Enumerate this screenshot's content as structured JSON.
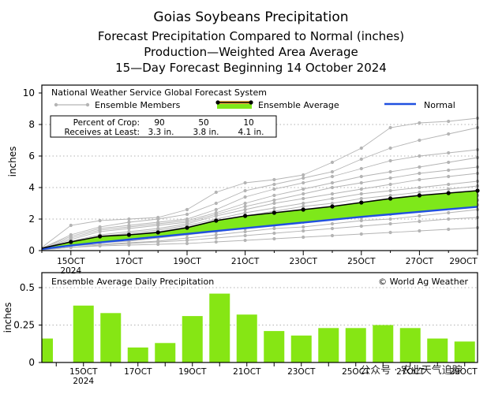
{
  "titles": {
    "line1": "Goias Soybeans Precipitation",
    "line2": "Forecast Precipitation Compared to Normal (inches)",
    "line3": "Production—Weighted Area Average",
    "line4": "15—Day Forecast Beginning 14 October 2024"
  },
  "top_chart": {
    "legend": {
      "source": "National Weather Service Global Forecast System",
      "members": "Ensemble Members",
      "average": "Ensemble Average",
      "normal": "Normal"
    },
    "crop_table": {
      "row1_label": "Percent of Crop:",
      "row2_label": "Receives at Least:",
      "percents": [
        "90",
        "50",
        "10"
      ],
      "amounts": [
        "3.3 in.",
        "3.8 in.",
        "4.1 in."
      ]
    },
    "ylabel": "inches",
    "yticks": [
      "0",
      "2",
      "4",
      "6",
      "8",
      "10"
    ],
    "xticks": [
      {
        "label": "15OCT",
        "sub": "2024"
      },
      {
        "label": "17OCT",
        "sub": ""
      },
      {
        "label": "19OCT",
        "sub": ""
      },
      {
        "label": "21OCT",
        "sub": ""
      },
      {
        "label": "23OCT",
        "sub": ""
      },
      {
        "label": "25OCT",
        "sub": ""
      },
      {
        "label": "27OCT",
        "sub": ""
      },
      {
        "label": "29OCT",
        "sub": ""
      }
    ]
  },
  "bottom_chart": {
    "title": "Ensemble Average Daily Precipitation",
    "credit": "© World Ag Weather",
    "ylabel": "inches",
    "yticks": [
      "0",
      "0.25",
      "0.5"
    ],
    "xticks": [
      {
        "label": "15OCT",
        "sub": "2024"
      },
      {
        "label": "17OCT",
        "sub": ""
      },
      {
        "label": "19OCT",
        "sub": ""
      },
      {
        "label": "21OCT",
        "sub": ""
      },
      {
        "label": "23OCT",
        "sub": ""
      },
      {
        "label": "25OCT",
        "sub": ""
      },
      {
        "label": "27OCT",
        "sub": ""
      },
      {
        "label": "29OCT",
        "sub": ""
      }
    ]
  },
  "watermark": "公众号 · 农业天气追踪",
  "colors": {
    "fill_green": "#7ee81a",
    "bar_green": "#86e614",
    "normal_blue": "#2050e0",
    "member_grey": "#b4b4b4",
    "avg_band_orange": "#f5b042"
  },
  "chart_data": [
    {
      "type": "line",
      "title": "Forecast Precipitation Compared to Normal (inches)",
      "xlabel": "",
      "ylabel": "inches",
      "xlim": [
        14.0,
        29.0
      ],
      "ylim": [
        0,
        10.5
      ],
      "x": [
        14,
        15,
        16,
        17,
        18,
        19,
        20,
        21,
        22,
        23,
        24,
        25,
        26,
        27,
        28,
        29
      ],
      "series": [
        {
          "name": "Ensemble Average",
          "values": [
            0.15,
            0.55,
            0.9,
            1.0,
            1.15,
            1.45,
            1.9,
            2.2,
            2.4,
            2.6,
            2.8,
            3.05,
            3.3,
            3.5,
            3.65,
            3.8
          ]
        },
        {
          "name": "Normal",
          "values": [
            0.1,
            0.32,
            0.52,
            0.7,
            0.88,
            1.06,
            1.24,
            1.42,
            1.6,
            1.78,
            1.96,
            2.14,
            2.3,
            2.46,
            2.62,
            2.78
          ]
        },
        {
          "name": "Ensemble Member 1",
          "values": [
            0.2,
            1.6,
            1.9,
            2.0,
            2.1,
            2.6,
            3.7,
            4.3,
            4.5,
            4.8,
            5.6,
            6.5,
            7.8,
            8.1,
            8.2,
            8.4
          ]
        },
        {
          "name": "Ensemble Member 2",
          "values": [
            0.15,
            1.0,
            1.5,
            1.8,
            2.0,
            2.3,
            3.0,
            3.8,
            4.2,
            4.6,
            5.0,
            5.8,
            6.5,
            7.0,
            7.4,
            7.8
          ]
        },
        {
          "name": "Ensemble Member 3",
          "values": [
            0.15,
            0.9,
            1.4,
            1.6,
            1.8,
            2.0,
            2.6,
            3.4,
            3.9,
            4.3,
            4.7,
            5.2,
            5.7,
            6.0,
            6.2,
            6.4
          ]
        },
        {
          "name": "Ensemble Member 4",
          "values": [
            0.1,
            0.8,
            1.3,
            1.5,
            1.7,
            1.9,
            2.4,
            3.0,
            3.5,
            3.9,
            4.3,
            4.7,
            5.0,
            5.3,
            5.6,
            5.9
          ]
        },
        {
          "name": "Ensemble Member 5",
          "values": [
            0.1,
            0.7,
            1.2,
            1.4,
            1.6,
            1.8,
            2.3,
            2.8,
            3.2,
            3.6,
            4.0,
            4.3,
            4.6,
            4.9,
            5.1,
            5.3
          ]
        },
        {
          "name": "Ensemble Member 6",
          "values": [
            0.1,
            0.6,
            1.0,
            1.2,
            1.4,
            1.7,
            2.2,
            2.6,
            3.0,
            3.3,
            3.6,
            3.9,
            4.2,
            4.5,
            4.7,
            4.9
          ]
        },
        {
          "name": "Ensemble Member 7",
          "values": [
            0.1,
            0.5,
            0.9,
            1.1,
            1.3,
            1.6,
            2.0,
            2.4,
            2.7,
            3.0,
            3.3,
            3.6,
            3.8,
            4.0,
            4.2,
            4.4
          ]
        },
        {
          "name": "Ensemble Member 8",
          "values": [
            0.1,
            0.5,
            0.8,
            1.0,
            1.2,
            1.5,
            1.9,
            2.2,
            2.5,
            2.8,
            3.0,
            3.3,
            3.5,
            3.7,
            3.9,
            4.1
          ]
        },
        {
          "name": "Ensemble Member 9",
          "values": [
            0.1,
            0.4,
            0.7,
            0.9,
            1.1,
            1.3,
            1.7,
            2.0,
            2.3,
            2.5,
            2.8,
            3.0,
            3.2,
            3.4,
            3.6,
            3.8
          ]
        },
        {
          "name": "Ensemble Member 10",
          "values": [
            0.1,
            0.4,
            0.6,
            0.8,
            1.0,
            1.2,
            1.5,
            1.8,
            2.0,
            2.2,
            2.5,
            2.7,
            2.9,
            3.1,
            3.3,
            3.5
          ]
        },
        {
          "name": "Ensemble Member 11",
          "values": [
            0.1,
            0.3,
            0.6,
            0.7,
            0.9,
            1.1,
            1.4,
            1.6,
            1.8,
            2.0,
            2.2,
            2.4,
            2.6,
            2.8,
            3.0,
            3.2
          ]
        },
        {
          "name": "Ensemble Member 12",
          "values": [
            0.05,
            0.3,
            0.5,
            0.6,
            0.8,
            1.0,
            1.2,
            1.4,
            1.6,
            1.8,
            2.0,
            2.1,
            2.3,
            2.5,
            2.7,
            2.9
          ]
        },
        {
          "name": "Ensemble Member 13",
          "values": [
            0.05,
            0.3,
            0.4,
            0.5,
            0.6,
            0.8,
            1.0,
            1.2,
            1.4,
            1.5,
            1.7,
            1.9,
            2.0,
            2.2,
            2.4,
            2.6
          ]
        },
        {
          "name": "Ensemble Member 14",
          "values": [
            0.05,
            0.2,
            0.35,
            0.45,
            0.55,
            0.65,
            0.8,
            0.95,
            1.1,
            1.25,
            1.4,
            1.55,
            1.7,
            1.85,
            2.0,
            2.1
          ]
        },
        {
          "name": "Ensemble Member 15",
          "values": [
            0.05,
            0.2,
            0.3,
            0.35,
            0.4,
            0.45,
            0.55,
            0.65,
            0.75,
            0.85,
            0.95,
            1.05,
            1.15,
            1.25,
            1.35,
            1.45
          ]
        }
      ]
    },
    {
      "type": "bar",
      "title": "Ensemble Average Daily Precipitation",
      "xlabel": "",
      "ylabel": "inches",
      "ylim": [
        0,
        0.6
      ],
      "categories": [
        "14OCT",
        "15OCT",
        "16OCT",
        "17OCT",
        "18OCT",
        "19OCT",
        "20OCT",
        "21OCT",
        "22OCT",
        "23OCT",
        "24OCT",
        "25OCT",
        "26OCT",
        "27OCT",
        "28OCT",
        "29OCT"
      ],
      "values": [
        0.16,
        0.38,
        0.33,
        0.1,
        0.13,
        0.31,
        0.46,
        0.32,
        0.21,
        0.18,
        0.23,
        0.23,
        0.25,
        0.23,
        0.16,
        0.14
      ]
    }
  ]
}
